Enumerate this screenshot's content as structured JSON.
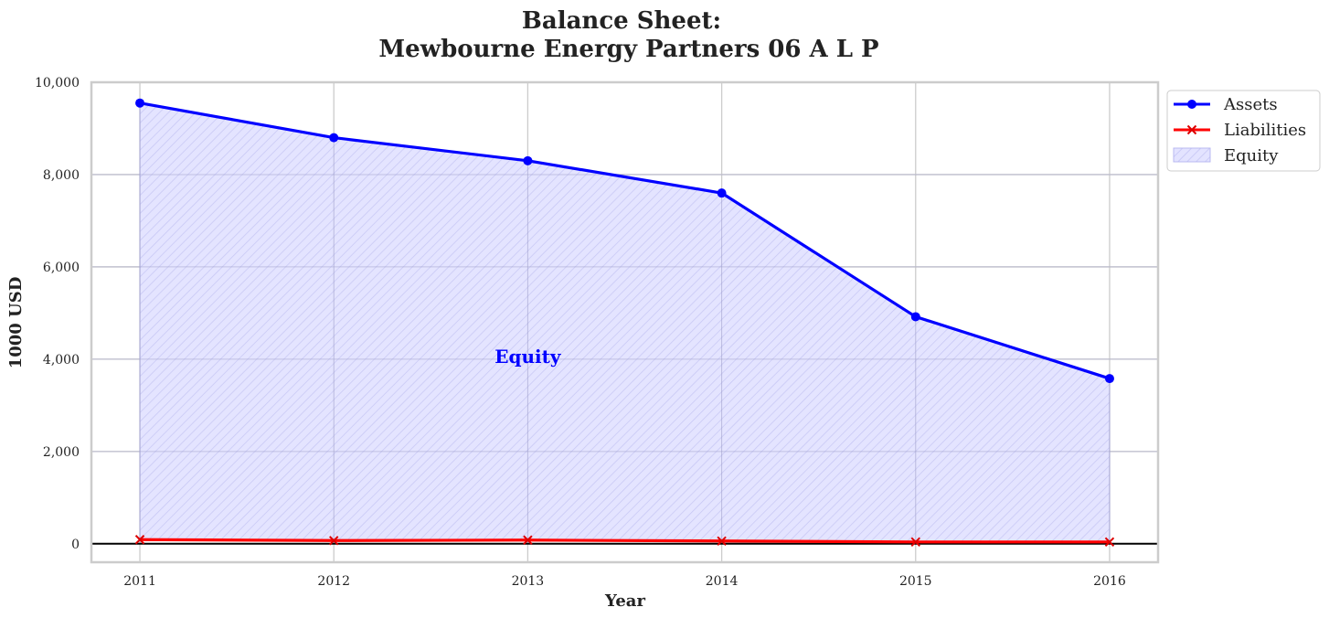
{
  "chart_data": {
    "type": "area",
    "title_line1": "Balance Sheet:",
    "title_line2": "Mewbourne Energy Partners 06 A L P",
    "xlabel": "Year",
    "ylabel": "1000 USD",
    "x": [
      2011,
      2012,
      2013,
      2014,
      2015,
      2016
    ],
    "x_tick_labels": [
      "2011",
      "2012",
      "2013",
      "2014",
      "2015",
      "2016"
    ],
    "ylim": [
      -400,
      10000
    ],
    "xlim": [
      2010.75,
      2016.25
    ],
    "y_ticks": [
      0,
      2000,
      4000,
      6000,
      8000,
      10000
    ],
    "y_tick_labels": [
      "0",
      "2,000",
      "4,000",
      "6,000",
      "8,000",
      "10,000"
    ],
    "grid": true,
    "legend_position": "outside top-right",
    "series": [
      {
        "name": "Assets",
        "values": [
          9550,
          8800,
          8300,
          7600,
          4920,
          3580
        ],
        "color": "#0000ff",
        "marker": "circle"
      },
      {
        "name": "Liabilities",
        "values": [
          90,
          70,
          80,
          60,
          40,
          40
        ],
        "color": "#ff0000",
        "marker": "x"
      }
    ],
    "fill": {
      "name": "Equity",
      "between": [
        "Liabilities",
        "Assets"
      ],
      "color": "#0000ff",
      "hatch": "diagonal"
    },
    "annotation": {
      "text": "Equity",
      "x": 2013,
      "y": 4000,
      "color": "#0000ff"
    }
  }
}
